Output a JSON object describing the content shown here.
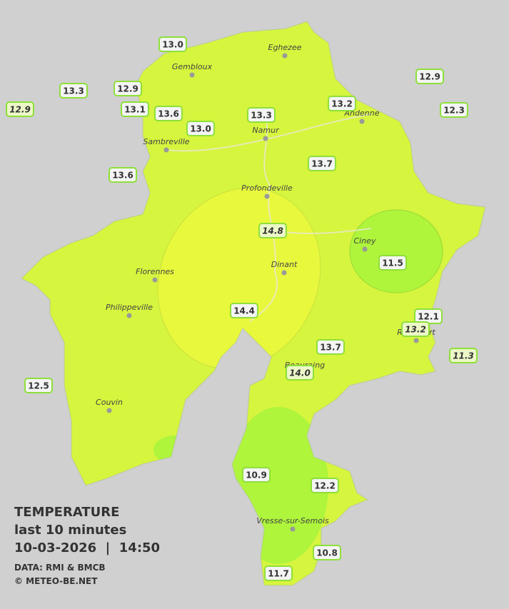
{
  "legend": {
    "title": "TEMPERATURE",
    "subtitle": "last 10 minutes",
    "datetime": "10-03-2026  |  14:50",
    "source": "DATA: RMI & BMCB",
    "copyright": "© METEO-BE.NET"
  },
  "cities": [
    {
      "name": "Eghezee"
    },
    {
      "name": "Gembloux"
    },
    {
      "name": "Andenne"
    },
    {
      "name": "Namur"
    },
    {
      "name": "Sambreville"
    },
    {
      "name": "Profondeville"
    },
    {
      "name": "Ciney"
    },
    {
      "name": "Dinant"
    },
    {
      "name": "Florennes"
    },
    {
      "name": "Philippeville"
    },
    {
      "name": "Beauraing"
    },
    {
      "name": "Rochefort"
    },
    {
      "name": "Couvin"
    },
    {
      "name": "Vresse-sur-Semois"
    }
  ],
  "stations": [
    {
      "value": "13.0"
    },
    {
      "value": "13.3"
    },
    {
      "value": "12.9"
    },
    {
      "value": "12.9",
      "italic": true
    },
    {
      "value": "13.1"
    },
    {
      "value": "13.6"
    },
    {
      "value": "13.0"
    },
    {
      "value": "13.3"
    },
    {
      "value": "13.2"
    },
    {
      "value": "12.9"
    },
    {
      "value": "12.3"
    },
    {
      "value": "13.6"
    },
    {
      "value": "13.7"
    },
    {
      "value": "14.8",
      "italic": true
    },
    {
      "value": "11.5"
    },
    {
      "value": "14.4"
    },
    {
      "value": "12.1"
    },
    {
      "value": "13.2",
      "italic": true
    },
    {
      "value": "11.3",
      "italic": true
    },
    {
      "value": "13.7"
    },
    {
      "value": "14.0",
      "italic": true
    },
    {
      "value": "12.5"
    },
    {
      "value": "10.9"
    },
    {
      "value": "12.2"
    },
    {
      "value": "10.8"
    },
    {
      "value": "11.7"
    }
  ]
}
